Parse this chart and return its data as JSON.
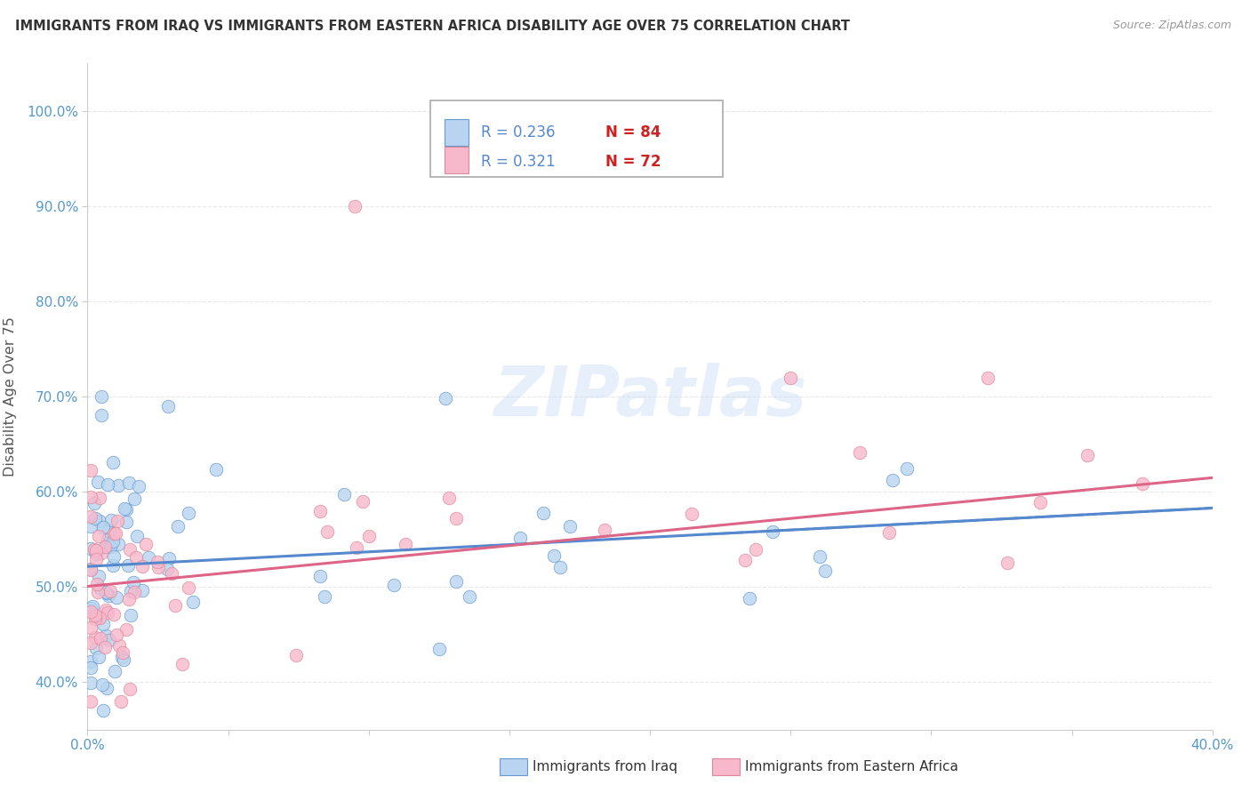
{
  "title": "IMMIGRANTS FROM IRAQ VS IMMIGRANTS FROM EASTERN AFRICA DISABILITY AGE OVER 75 CORRELATION CHART",
  "source": "Source: ZipAtlas.com",
  "ylabel": "Disability Age Over 75",
  "xlim": [
    0.0,
    0.4
  ],
  "ylim": [
    0.35,
    1.05
  ],
  "xtick_vals": [
    0.0,
    0.05,
    0.1,
    0.15,
    0.2,
    0.25,
    0.3,
    0.35,
    0.4
  ],
  "xtick_labels": [
    "0.0%",
    "",
    "",
    "",
    "",
    "",
    "",
    "",
    "40.0%"
  ],
  "ytick_vals": [
    0.4,
    0.5,
    0.6,
    0.7,
    0.8,
    0.9,
    1.0
  ],
  "ytick_labels": [
    "40.0%",
    "50.0%",
    "60.0%",
    "70.0%",
    "80.0%",
    "90.0%",
    "100.0%"
  ],
  "legend_r1": "R = 0.236",
  "legend_n1": "N = 84",
  "legend_r2": "R = 0.321",
  "legend_n2": "N = 72",
  "color_iraq": "#b8d4f0",
  "color_africa": "#f8b8cc",
  "color_iraq_edge": "#6699cc",
  "color_africa_edge": "#dd8899",
  "color_iraq_line": "#5588cc",
  "color_africa_line": "#dd6688",
  "watermark": "ZIPatlas",
  "grid_color": "#e8e8e8",
  "tick_color": "#5599cc",
  "title_color": "#333333",
  "source_color": "#999999"
}
